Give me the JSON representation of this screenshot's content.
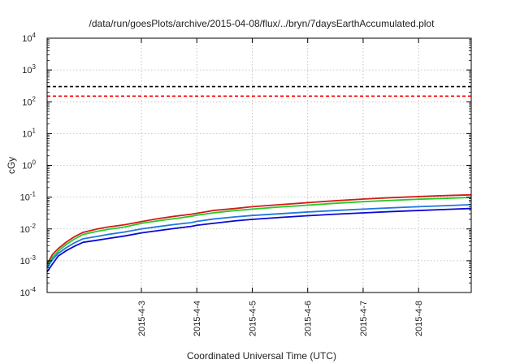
{
  "chart_data": {
    "type": "line",
    "title": "/data/run/goesPlots/archive/2015-04-08/flux/../bryn/7daysEarthAccumulated.plot",
    "xlabel": "Coordinated Universal Time (UTC)",
    "ylabel": "cGy",
    "x_ticks": [
      "2015-4-3",
      "2015-4-4",
      "2015-4-5",
      "2015-4-6",
      "2015-4-7",
      "2015-4-8"
    ],
    "x_tick_positions_days": [
      1,
      2,
      3,
      4,
      5,
      6
    ],
    "xlim_days": [
      -0.7,
      6.95
    ],
    "x_origin_date": "2015-4-2",
    "y_scale": "log",
    "ylim": [
      0.0001,
      10000
    ],
    "y_tick_exponents": [
      -4,
      -3,
      -2,
      -1,
      0,
      1,
      2,
      3,
      4
    ],
    "grid": true,
    "reference_lines": [
      {
        "value": 300,
        "color": "#000000",
        "style": "dashed"
      },
      {
        "value": 150,
        "color": "#ff0000",
        "style": "dashed"
      }
    ],
    "series": [
      {
        "color": "#d41a1a",
        "x": [
          -0.7,
          -0.6,
          -0.5,
          -0.35,
          -0.2,
          -0.05,
          0.2,
          0.4,
          0.7,
          1.0,
          1.3,
          1.6,
          1.9,
          2.0,
          2.3,
          2.7,
          3.0,
          3.5,
          4.0,
          4.5,
          5.0,
          5.5,
          6.0,
          6.5,
          6.95
        ],
        "y": [
          0.0008,
          0.0016,
          0.0024,
          0.0039,
          0.0058,
          0.0078,
          0.0099,
          0.0115,
          0.0135,
          0.017,
          0.021,
          0.025,
          0.029,
          0.031,
          0.038,
          0.044,
          0.05,
          0.058,
          0.067,
          0.077,
          0.087,
          0.096,
          0.104,
          0.112,
          0.118
        ]
      },
      {
        "color": "#22cc22",
        "x": [
          -0.7,
          -0.6,
          -0.5,
          -0.35,
          -0.2,
          -0.05,
          0.2,
          0.4,
          0.7,
          1.0,
          1.3,
          1.6,
          1.9,
          2.0,
          2.3,
          2.7,
          3.0,
          3.5,
          4.0,
          4.5,
          5.0,
          5.5,
          6.0,
          6.5,
          6.95
        ],
        "y": [
          0.0007,
          0.0013,
          0.002,
          0.0033,
          0.0049,
          0.0067,
          0.0084,
          0.0097,
          0.0115,
          0.015,
          0.018,
          0.021,
          0.025,
          0.027,
          0.032,
          0.038,
          0.042,
          0.049,
          0.056,
          0.064,
          0.072,
          0.079,
          0.086,
          0.092,
          0.098
        ]
      },
      {
        "color": "#2277dd",
        "x": [
          -0.7,
          -0.6,
          -0.5,
          -0.35,
          -0.2,
          -0.05,
          0.2,
          0.4,
          0.7,
          1.0,
          1.3,
          1.6,
          1.9,
          2.0,
          2.3,
          2.7,
          3.0,
          3.5,
          4.0,
          4.5,
          5.0,
          5.5,
          6.0,
          6.5,
          6.95
        ],
        "y": [
          0.0006,
          0.0011,
          0.0017,
          0.0026,
          0.0037,
          0.0049,
          0.0058,
          0.0067,
          0.008,
          0.01,
          0.0118,
          0.0138,
          0.0158,
          0.0172,
          0.0205,
          0.024,
          0.0265,
          0.03,
          0.034,
          0.038,
          0.042,
          0.046,
          0.05,
          0.054,
          0.058
        ]
      },
      {
        "color": "#0a0ad4",
        "x": [
          -0.7,
          -0.6,
          -0.5,
          -0.35,
          -0.2,
          -0.05,
          0.2,
          0.4,
          0.7,
          1.0,
          1.3,
          1.6,
          1.9,
          2.0,
          2.3,
          2.7,
          3.0,
          3.5,
          4.0,
          4.5,
          5.0,
          5.5,
          6.0,
          6.5,
          6.95
        ],
        "y": [
          0.00045,
          0.0008,
          0.0014,
          0.0021,
          0.0029,
          0.0038,
          0.0044,
          0.005,
          0.006,
          0.0075,
          0.0088,
          0.0104,
          0.012,
          0.013,
          0.015,
          0.018,
          0.02,
          0.023,
          0.026,
          0.029,
          0.032,
          0.035,
          0.038,
          0.041,
          0.044
        ]
      }
    ]
  }
}
